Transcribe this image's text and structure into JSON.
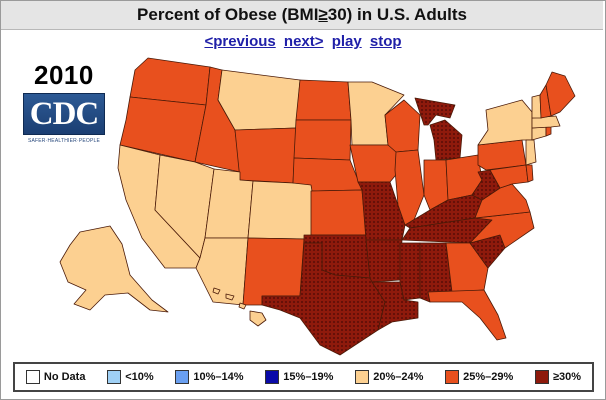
{
  "title": {
    "prefix": "Percent of Obese (BMI ",
    "ge_symbol": "≥",
    "suffix": " 30) in U.S. Adults"
  },
  "nav": {
    "previous": "<previous",
    "next": "next>",
    "play": "play",
    "stop": "stop"
  },
  "year": "2010",
  "logo": {
    "text": "CDC",
    "tagline": "SAFER·HEALTHIER·PEOPLE"
  },
  "colors": {
    "no_data": "#ffffff",
    "lt10": "#9fd0f5",
    "p10_14": "#6a9ff0",
    "p15_19": "#0a0aa8",
    "p20_24": "#fcd091",
    "p25_29": "#e8501e",
    "ge30": "#8e1a0c"
  },
  "legend": [
    {
      "label": "No Data",
      "color": "#ffffff"
    },
    {
      "label": "<10%",
      "color": "#9fd0f5"
    },
    {
      "label": "10%–14%",
      "color": "#6a9ff0"
    },
    {
      "label": "15%–19%",
      "color": "#0a0aa8"
    },
    {
      "label": "20%–24%",
      "color": "#fcd091"
    },
    {
      "label": "25%–29%",
      "color": "#e8501e"
    },
    {
      "label": "≥30%",
      "color": "#8e1a0c"
    }
  ],
  "states_by_category": {
    "20-24%": [
      "CA",
      "NV",
      "UT",
      "CO",
      "AZ",
      "MT",
      "MN",
      "NY",
      "VT",
      "NJ",
      "MA",
      "CT",
      "HI",
      "AK"
    ],
    "25-29%": [
      "WA",
      "OR",
      "ID",
      "WY",
      "NM",
      "ND",
      "SD",
      "NE",
      "KS",
      "IA",
      "WI",
      "IL",
      "IN",
      "OH",
      "PA",
      "VA",
      "NC",
      "GA",
      "FL",
      "ME",
      "NH",
      "RI",
      "DE",
      "MD"
    ],
    "≥30%": [
      "TX",
      "OK",
      "MO",
      "AR",
      "LA",
      "MS",
      "AL",
      "TN",
      "KY",
      "SC",
      "MI",
      "WV"
    ]
  }
}
